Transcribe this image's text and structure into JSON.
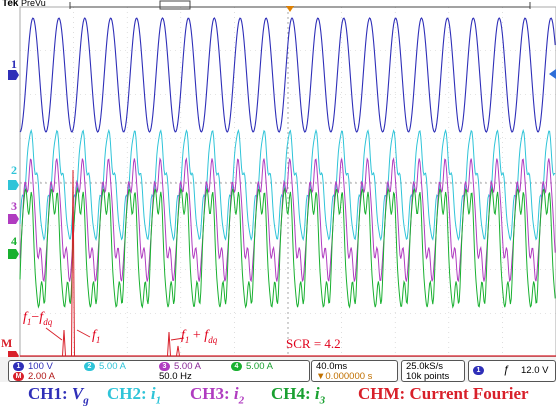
{
  "header": {
    "brand": "Tek",
    "mode": "PreVu"
  },
  "channels": [
    {
      "id": "1",
      "color": "#2f2fb8",
      "scale": "100 V"
    },
    {
      "id": "2",
      "color": "#2fc4d8",
      "scale": "5.00 A"
    },
    {
      "id": "3",
      "color": "#b03cc0",
      "scale": "5.00 A"
    },
    {
      "id": "4",
      "color": "#19b030",
      "scale": "5.00 A"
    }
  ],
  "math": {
    "id": "M",
    "color": "#d8202a",
    "scale": "2.00 A",
    "freq": "50.0 Hz"
  },
  "timebase": {
    "value": "40.0ms",
    "delay": "▼0.000000 s"
  },
  "acquisition": {
    "rate": "25.0kS/s",
    "points": "10k points"
  },
  "trigger": {
    "channel": "1",
    "slope": "ƒ",
    "level": "12.0 V"
  },
  "annotations": {
    "f_left_base": "f",
    "f_left_sub1": "1",
    "f_left_minus": "−",
    "f_left_sub2": "dq",
    "f1_base": "f",
    "f1_sub": "1",
    "f_right_base": "f",
    "f_right_sub1": "1",
    "f_right_plus": " + ",
    "f_right_sub2": "dq",
    "scr": "SCR = 4.2"
  },
  "legend": {
    "ch1_prefix": "CH1: ",
    "ch1_var": "V",
    "ch1_sub": "g",
    "ch2_prefix": "CH2: ",
    "ch2_var": "i",
    "ch2_sub": "1",
    "ch3_prefix": "CH3: ",
    "ch3_var": "i",
    "ch3_sub": "2",
    "ch4_prefix": "CH4: ",
    "ch4_var": "i",
    "ch4_sub": "3",
    "chm": "CHM: Current Fourier"
  }
}
